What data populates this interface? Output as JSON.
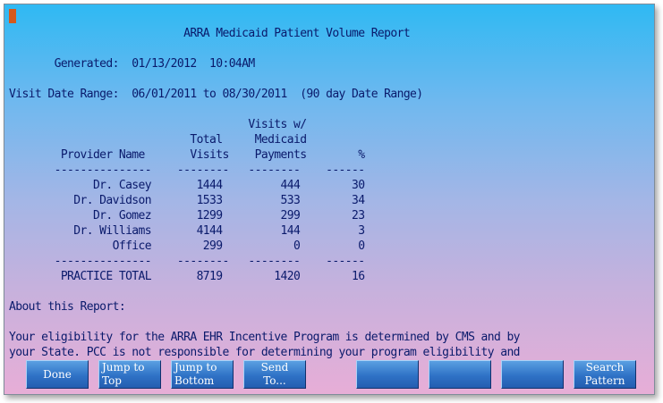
{
  "report": {
    "lines": [
      "                           ARRA Medicaid Patient Volume Report",
      "",
      "       Generated:  01/13/2012  10:04AM",
      "",
      "Visit Date Range:  06/01/2011 to 08/30/2011  (90 day Date Range)",
      "",
      "                                     Visits w/",
      "                            Total     Medicaid",
      "        Provider Name       Visits    Payments        %",
      "       ---------------    --------   --------    ------",
      "             Dr. Casey       1444         444        30",
      "          Dr. Davidson       1533         533        34",
      "             Dr. Gomez       1299         299        23",
      "          Dr. Williams       4144         144         3",
      "                Office        299           0         0",
      "       ---------------    --------   --------    ------",
      "        PRACTICE TOTAL       8719        1420        16",
      "",
      "About this Report:",
      "",
      "Your eligibility for the ARRA EHR Incentive Program is determined by CMS and by",
      "your State. PCC is not responsible for determining your program eligibility and"
    ]
  },
  "fkeys": [
    {
      "label": "Done"
    },
    {
      "label": "Jump to\nTop"
    },
    {
      "label": "Jump to\nBottom"
    },
    {
      "label": "Send\nTo..."
    },
    {
      "label": ""
    },
    {
      "label": ""
    },
    {
      "label": ""
    },
    {
      "label": "Search\nPattern"
    }
  ]
}
